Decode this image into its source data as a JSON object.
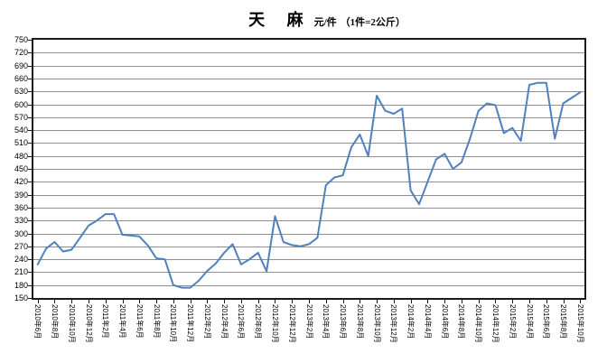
{
  "header": {
    "title": "天 麻",
    "unit_label": "元/件",
    "unit_note": "（1件=2公斤）"
  },
  "chart_data": {
    "type": "line",
    "title": "天麻 价格走势",
    "ylabel": "元/件",
    "unit_note": "1件=2公斤",
    "grid": "horizontal",
    "legend_position": "none",
    "y_axis": {
      "min": 150,
      "max": 750,
      "step": 30,
      "tick_labels": [
        "750",
        "720",
        "690",
        "660",
        "630",
        "600",
        "570",
        "540",
        "510",
        "480",
        "450",
        "420",
        "390",
        "360",
        "330",
        "300",
        "270",
        "240",
        "210",
        "180",
        "150"
      ]
    },
    "x_axis": {
      "tick_every_n_months": 2,
      "tick_labels": [
        "2010年6月",
        "2010年8月",
        "2010年10月",
        "2010年12月",
        "2011年2月",
        "2011年4月",
        "2011年6月",
        "2011年8月",
        "2011年10月",
        "2011年12月",
        "2012年2月",
        "2012年4月",
        "2012年6月",
        "2012年8月",
        "2012年10月",
        "2012年12月",
        "2013年2月",
        "2013年4月",
        "2013年6月",
        "2013年8月",
        "2013年10月",
        "2013年12月",
        "2014年2月",
        "2014年4月",
        "2014年6月",
        "2014年8月",
        "2014年10月",
        "2014年12月",
        "2015年2月",
        "2015年4月",
        "2015年6月",
        "2015年8月",
        "2015年10月"
      ]
    },
    "series": [
      {
        "name": "天麻",
        "months": [
          "2010-06",
          "2010-07",
          "2010-08",
          "2010-09",
          "2010-10",
          "2010-11",
          "2010-12",
          "2011-01",
          "2011-02",
          "2011-03",
          "2011-04",
          "2011-05",
          "2011-06",
          "2011-07",
          "2011-08",
          "2011-09",
          "2011-10",
          "2011-11",
          "2011-12",
          "2012-01",
          "2012-02",
          "2012-03",
          "2012-04",
          "2012-05",
          "2012-06",
          "2012-07",
          "2012-08",
          "2012-09",
          "2012-10",
          "2012-11",
          "2012-12",
          "2013-01",
          "2013-02",
          "2013-03",
          "2013-04",
          "2013-05",
          "2013-06",
          "2013-07",
          "2013-08",
          "2013-09",
          "2013-10",
          "2013-11",
          "2013-12",
          "2014-01",
          "2014-02",
          "2014-03",
          "2014-04",
          "2014-05",
          "2014-06",
          "2014-07",
          "2014-08",
          "2014-09",
          "2014-10",
          "2014-11",
          "2014-12",
          "2015-01",
          "2015-02",
          "2015-03",
          "2015-04",
          "2015-05",
          "2015-06",
          "2015-07",
          "2015-08",
          "2015-09",
          "2015-10"
        ],
        "values": [
          228,
          265,
          280,
          258,
          262,
          290,
          318,
          330,
          345,
          345,
          297,
          295,
          293,
          272,
          242,
          240,
          180,
          174,
          174,
          190,
          213,
          230,
          255,
          275,
          228,
          240,
          255,
          212,
          340,
          280,
          273,
          270,
          275,
          290,
          412,
          430,
          435,
          500,
          530,
          480,
          620,
          585,
          578,
          590,
          400,
          368,
          420,
          472,
          485,
          450,
          465,
          520,
          585,
          602,
          598,
          533,
          545,
          515,
          645,
          650,
          650,
          520,
          602,
          615,
          628
        ]
      }
    ],
    "style": {
      "line_color": "#4F81BD",
      "grid_color": "#8e8e8e",
      "axis_color": "#1a1a1a",
      "background": "#ffffff"
    }
  }
}
